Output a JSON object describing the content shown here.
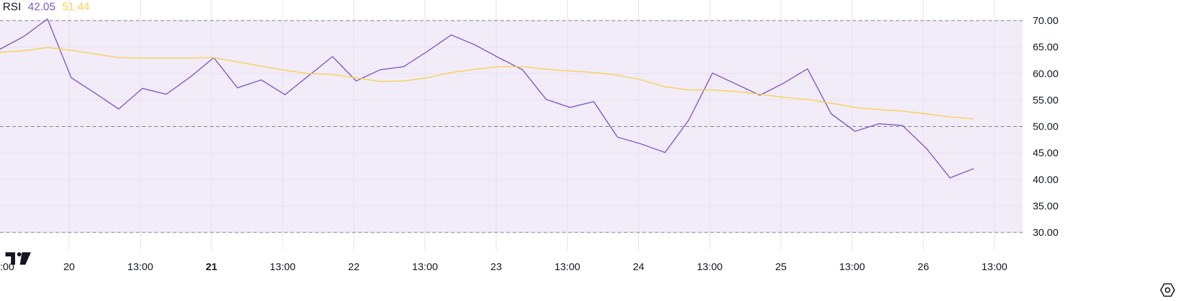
{
  "legend": {
    "name": "RSI",
    "rsi_value": "42.05",
    "ma_value": "51.44"
  },
  "colors": {
    "rsi": "#7e57c2",
    "ma": "#f7d24a",
    "band": "#f2ebf8",
    "grid": "#e6e0ee",
    "dashed": "#787b86",
    "label": "#131722"
  },
  "icons": [
    "tradingview-logo-icon",
    "settings-icon"
  ],
  "chart_data": {
    "type": "line",
    "ylim": [
      30,
      70
    ],
    "band": [
      30,
      70
    ],
    "reference_lines": [
      30,
      50,
      70
    ],
    "y_ticks": [
      "70.00",
      "65.00",
      "60.00",
      "55.00",
      "50.00",
      "45.00",
      "40.00",
      "35.00",
      "30.00"
    ],
    "x_ticks": [
      {
        "label": ":00",
        "bold": false
      },
      {
        "label": "20",
        "bold": false
      },
      {
        "label": "13:00",
        "bold": false
      },
      {
        "label": "21",
        "bold": true
      },
      {
        "label": "13:00",
        "bold": false
      },
      {
        "label": "22",
        "bold": false
      },
      {
        "label": "13:00",
        "bold": false
      },
      {
        "label": "23",
        "bold": false
      },
      {
        "label": "13:00",
        "bold": false
      },
      {
        "label": "24",
        "bold": false
      },
      {
        "label": "13:00",
        "bold": false
      },
      {
        "label": "25",
        "bold": false
      },
      {
        "label": "13:00",
        "bold": false
      },
      {
        "label": "26",
        "bold": false
      },
      {
        "label": "13:00",
        "bold": false
      }
    ],
    "series": [
      {
        "values": [
          64.6,
          67.0,
          70.3,
          59.2,
          56.3,
          53.3,
          57.2,
          56.1,
          59.3,
          63.0,
          57.3,
          58.8,
          56.0,
          59.6,
          63.2,
          58.6,
          60.7,
          61.3,
          64.2,
          67.3,
          65.4,
          63.0,
          60.7,
          55.1,
          53.6,
          54.7,
          48.0,
          46.7,
          45.1,
          51.2,
          60.1,
          58.0,
          55.9,
          58.2,
          60.9,
          52.4,
          49.1,
          50.5,
          50.2,
          45.9,
          40.3,
          42.05
        ]
      },
      {
        "values": [
          64.0,
          64.3,
          64.9,
          64.4,
          63.7,
          63.0,
          62.9,
          62.9,
          62.9,
          63.0,
          62.2,
          61.4,
          60.6,
          60.0,
          59.8,
          59.2,
          58.5,
          58.6,
          59.2,
          60.2,
          60.8,
          61.3,
          61.3,
          60.8,
          60.5,
          60.2,
          59.7,
          58.8,
          57.5,
          56.9,
          56.9,
          56.6,
          56.1,
          55.5,
          55.1,
          54.4,
          53.6,
          53.2,
          52.9,
          52.4,
          51.8,
          51.44
        ]
      }
    ]
  }
}
